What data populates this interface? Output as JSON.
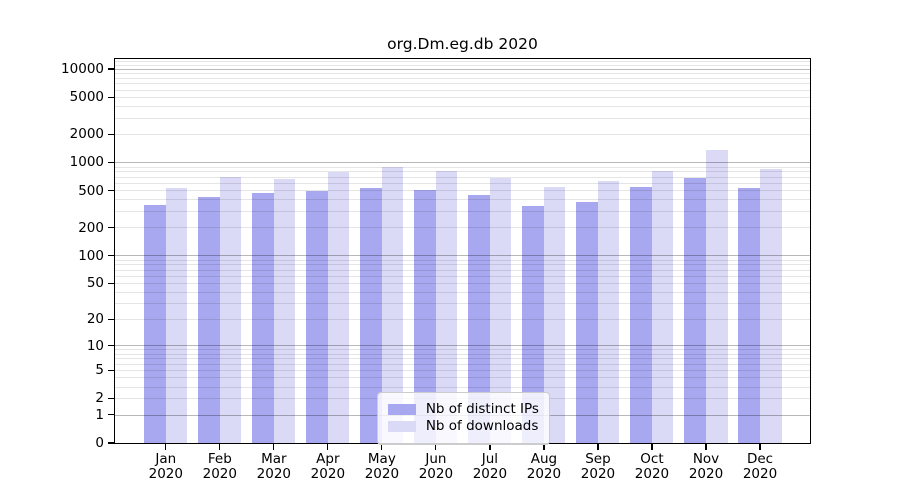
{
  "chart_data": {
    "type": "bar",
    "title": "org.Dm.eg.db 2020",
    "categories": [
      "Jan",
      "Feb",
      "Mar",
      "Apr",
      "May",
      "Jun",
      "Jul",
      "Aug",
      "Sep",
      "Oct",
      "Nov",
      "Dec"
    ],
    "category_year": "2020",
    "series": [
      {
        "name": "Nb of distinct IPs",
        "color": "#a8a8f0",
        "values": [
          346,
          422,
          469,
          492,
          535,
          509,
          443,
          337,
          372,
          540,
          673,
          526
        ]
      },
      {
        "name": "Nb of downloads",
        "color": "#dadaf7",
        "values": [
          530,
          702,
          657,
          786,
          890,
          814,
          678,
          540,
          636,
          801,
          1342,
          856
        ]
      }
    ],
    "y_ticks": [
      0,
      1,
      2,
      5,
      10,
      20,
      50,
      100,
      200,
      500,
      1000,
      2000,
      5000,
      10000
    ],
    "ylim": [
      0,
      12789
    ],
    "y_scale": "log10(value+1)",
    "grid": true,
    "major_grid_values": [
      1,
      10,
      100,
      1000,
      10000
    ],
    "legend_position": "bottom-center",
    "colors": {
      "major_grid": "rgba(0,0,0,0.28)",
      "minor_grid": "rgba(0,0,0,0.10)",
      "axis": "#000000",
      "background": "#ffffff"
    }
  }
}
